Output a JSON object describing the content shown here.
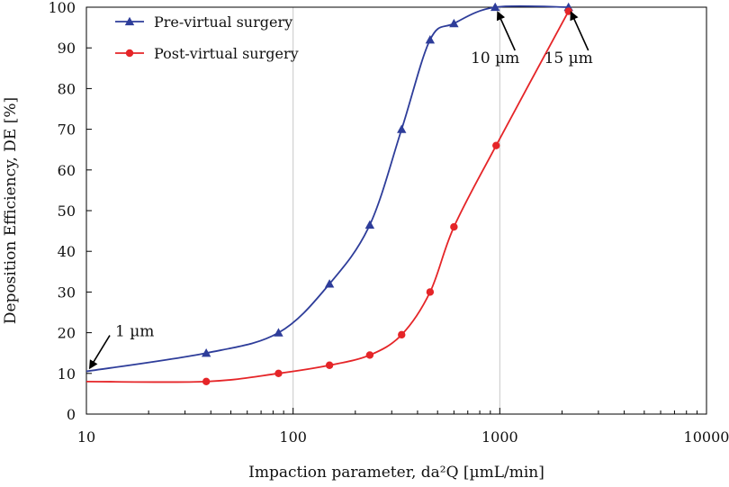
{
  "chart_data": {
    "type": "line",
    "xscale": "log",
    "xlim": [
      10,
      10000
    ],
    "ylim": [
      0,
      100
    ],
    "xticks": [
      10,
      100,
      1000,
      10000
    ],
    "xtick_labels": [
      "10",
      "100",
      "1000",
      "10000"
    ],
    "yticks": [
      0,
      10,
      20,
      30,
      40,
      50,
      60,
      70,
      80,
      90,
      100
    ],
    "ytick_labels": [
      "0",
      "10",
      "20",
      "30",
      "40",
      "50",
      "60",
      "70",
      "80",
      "90",
      "100"
    ],
    "xlabel": "Impaction parameter, da²Q [µmL/min]",
    "ylabel": "Deposition Efficiency, DE [%]",
    "grid": "vertical lines at major x ticks",
    "legend_position": "top-left",
    "series": [
      {
        "name": "Pre-virtual surgery",
        "color": "#2e3d9a",
        "marker": "triangle",
        "x": [
          10,
          38,
          85,
          150,
          235,
          335,
          460,
          600,
          950,
          2150
        ],
        "y": [
          10.5,
          15,
          20,
          32,
          46.5,
          70,
          92,
          96,
          100,
          100
        ],
        "marker_indices": [
          1,
          2,
          3,
          4,
          5,
          6,
          7,
          8,
          9
        ]
      },
      {
        "name": "Post-virtual surgery",
        "color": "#e52528",
        "marker": "circle",
        "x": [
          10,
          38,
          85,
          150,
          235,
          335,
          460,
          600,
          960,
          2150
        ],
        "y": [
          8,
          8,
          10,
          12,
          14.5,
          19.5,
          30,
          46,
          66,
          99
        ],
        "marker_indices": [
          1,
          2,
          3,
          4,
          5,
          6,
          7,
          8,
          9
        ]
      }
    ],
    "annotations": [
      {
        "text": "1 µm",
        "point": [
          10,
          10.5
        ],
        "side": "upper-right"
      },
      {
        "text": "10 µm",
        "point": [
          950,
          100
        ],
        "side": "below"
      },
      {
        "text": "15 µm",
        "point": [
          2150,
          100
        ],
        "side": "below"
      }
    ]
  }
}
